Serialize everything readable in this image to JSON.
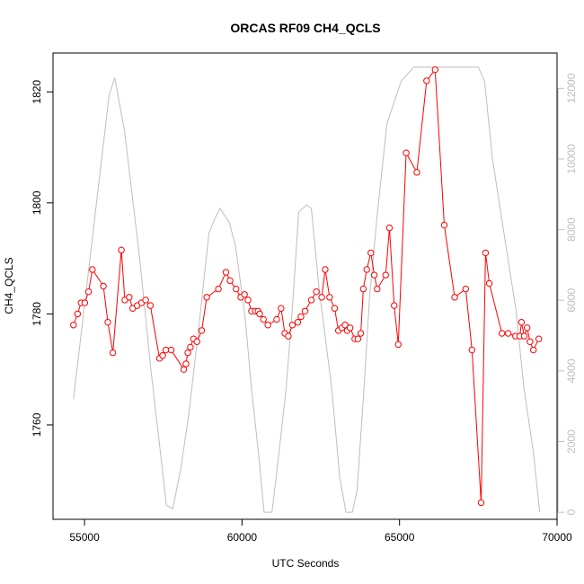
{
  "chart_data": {
    "type": "line",
    "title": "ORCAS RF09 CH4_QCLS",
    "xlabel": "UTC Seconds",
    "ylabel": "CH4_QCLS",
    "y2label": "",
    "xlim": [
      54000,
      70000
    ],
    "ylim": [
      1743,
      1827
    ],
    "y2lim": [
      -200,
      13000
    ],
    "x_ticks": [
      55000,
      60000,
      65000,
      70000
    ],
    "x_tick_labels": [
      "55000",
      "60000",
      "65000",
      "70000"
    ],
    "y_ticks": [
      1760,
      1780,
      1800,
      1820
    ],
    "y_tick_labels": [
      "1760",
      "1780",
      "1800",
      "1820"
    ],
    "y2_ticks": [
      0,
      2000,
      4000,
      6000,
      8000,
      10000,
      12000
    ],
    "y2_tick_labels": [
      "0",
      "2000",
      "4000",
      "6000",
      "8000",
      "10000",
      "12000"
    ],
    "grid": false,
    "colors": {
      "series": "#ff0000",
      "altitude": "#bebebe",
      "axes": "#000000",
      "right_axis": "#bebebe"
    },
    "series": [
      {
        "axis": "left",
        "style": "line+points",
        "color": "#ff0000",
        "x": [
          54650,
          54780,
          54890,
          55010,
          55130,
          55250,
          55600,
          55740,
          55900,
          56170,
          56280,
          56420,
          56530,
          56670,
          56810,
          56940,
          57090,
          57380,
          57480,
          57580,
          57750,
          58150,
          58220,
          58280,
          58360,
          58460,
          58570,
          58720,
          58880,
          59250,
          59490,
          59620,
          59810,
          59960,
          60080,
          60190,
          60300,
          60420,
          60510,
          60560,
          60680,
          60820,
          61100,
          61240,
          61360,
          61470,
          61600,
          61770,
          61870,
          62000,
          62200,
          62360,
          62530,
          62640,
          62780,
          62940,
          63060,
          63170,
          63270,
          63340,
          63430,
          63580,
          63680,
          63770,
          63850,
          63960,
          64090,
          64200,
          64290,
          64560,
          64680,
          64830,
          64960,
          65210,
          65550,
          65860,
          66130,
          66420,
          66750,
          67100,
          67300,
          67590,
          67730,
          67850,
          68250,
          68450,
          68680,
          68820,
          68870,
          68960,
          69050,
          69140,
          69250,
          69420
        ],
        "y": [
          1778.0,
          1780.0,
          1782.0,
          1782.0,
          1784.0,
          1788.0,
          1785.0,
          1778.5,
          1773.0,
          1791.5,
          1782.5,
          1783.0,
          1781.0,
          1781.5,
          1782.0,
          1782.5,
          1781.5,
          1772.0,
          1772.5,
          1773.5,
          1773.5,
          1770.0,
          1771.0,
          1773.0,
          1774.0,
          1775.5,
          1775.0,
          1777.0,
          1783.0,
          1784.5,
          1787.5,
          1786.0,
          1784.5,
          1783.0,
          1783.5,
          1782.5,
          1780.5,
          1780.5,
          1780.5,
          1780.0,
          1779.0,
          1778.0,
          1779.0,
          1781.0,
          1776.5,
          1776.0,
          1778.0,
          1778.5,
          1779.5,
          1780.5,
          1782.5,
          1784.0,
          1783.0,
          1788.0,
          1783.0,
          1781.0,
          1777.0,
          1777.5,
          1778.0,
          1777.0,
          1777.5,
          1775.5,
          1775.5,
          1776.5,
          1784.5,
          1788.0,
          1791.0,
          1787.0,
          1784.5,
          1787.0,
          1795.5,
          1781.5,
          1774.5,
          1809.0,
          1805.5,
          1822.0,
          1824.0,
          1796.0,
          1783.0,
          1784.5,
          1773.5,
          1746.0,
          1791.0,
          1785.5,
          1776.5,
          1776.5,
          1776.0,
          1776.0,
          1778.5,
          1776.0,
          1777.5,
          1775.0,
          1773.5,
          1775.5
        ],
        "hollow_points": true,
        "missing_segments_after_index": [
          23,
          34,
          48,
          51
        ]
      },
      {
        "axis": "right",
        "style": "line",
        "color": "#bebebe",
        "x": [
          54650,
          55780,
          55960,
          56270,
          56750,
          57100,
          57600,
          57800,
          58050,
          58300,
          58600,
          58950,
          59130,
          59300,
          59600,
          59800,
          60100,
          60300,
          60520,
          60700,
          60950,
          61150,
          61400,
          61600,
          61800,
          62050,
          62200,
          62450,
          62850,
          63100,
          63300,
          63500,
          63650,
          63850,
          64050,
          64300,
          64600,
          65050,
          65450,
          66200,
          66900,
          67500,
          67700,
          67950,
          68350,
          68700,
          68950,
          69250,
          69450
        ],
        "y": [
          3200,
          11800,
          12300,
          10800,
          7200,
          4100,
          200,
          100,
          1200,
          2700,
          5000,
          7900,
          8300,
          8600,
          8200,
          7500,
          5500,
          3500,
          1700,
          0,
          0,
          1500,
          3500,
          5800,
          8500,
          8700,
          8600,
          6300,
          3500,
          1000,
          0,
          0,
          600,
          3200,
          6100,
          8500,
          11000,
          12200,
          12600,
          12600,
          12600,
          12600,
          12200,
          10000,
          7700,
          5700,
          3500,
          1700,
          0
        ]
      }
    ]
  }
}
